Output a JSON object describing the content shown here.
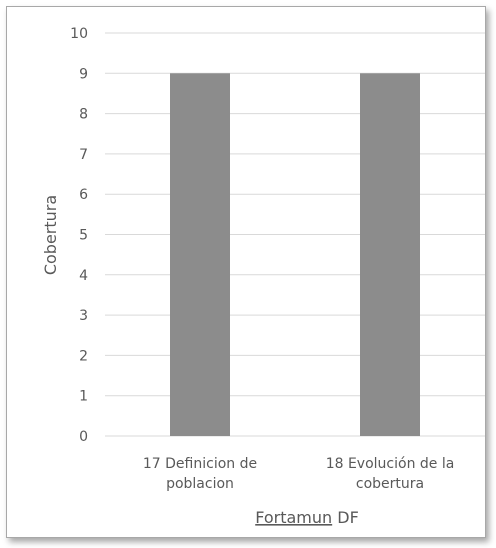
{
  "chart_data": {
    "type": "bar",
    "categories": [
      "17 Definicion de poblacion",
      "18 Evolución de la cobertura"
    ],
    "category_lines": [
      [
        "17 Definicion de",
        "poblacion"
      ],
      [
        "18 Evolución de la",
        "cobertura"
      ]
    ],
    "values": [
      9,
      9
    ],
    "title": "",
    "xlabel_parts": [
      "Fortamun",
      " DF"
    ],
    "ylabel": "Cobertura",
    "ylim": [
      0,
      10
    ],
    "yticks": [
      0,
      1,
      2,
      3,
      4,
      5,
      6,
      7,
      8,
      9,
      10
    ],
    "grid": true,
    "legend": "none",
    "colors": {
      "bar": "#8c8c8c",
      "grid": "#d9d9d9",
      "text": "#595959"
    }
  }
}
